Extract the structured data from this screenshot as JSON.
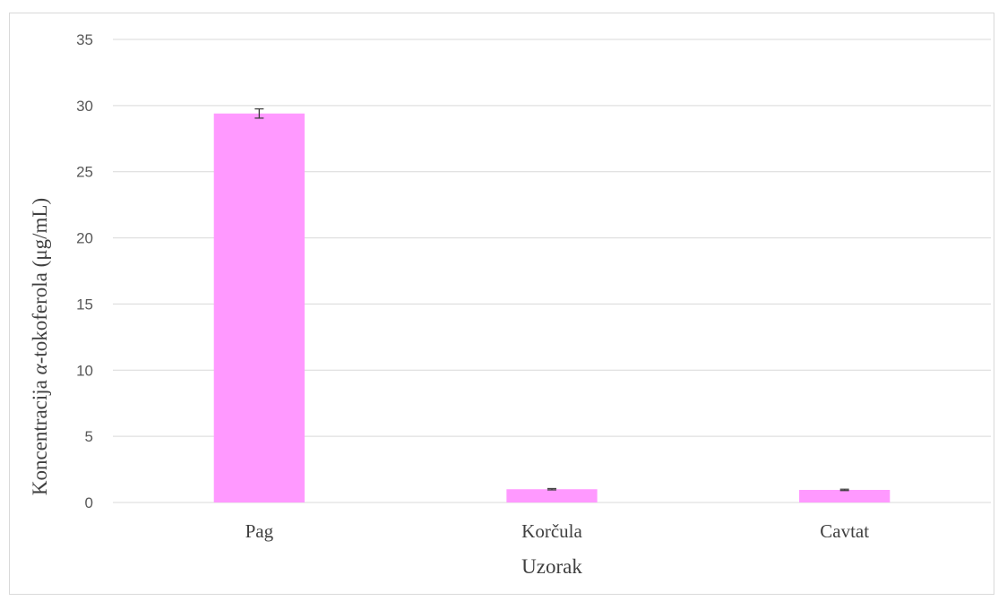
{
  "chart_data": {
    "type": "bar",
    "categories": [
      "Pag",
      "Korčula",
      "Cavtat"
    ],
    "series": [
      {
        "values": [
          29.4,
          1.0,
          0.95
        ],
        "errors": [
          0.35,
          0.05,
          0.05
        ]
      }
    ],
    "xlabel": "Uzorak",
    "ylabel_prefix": "Koncentracija ",
    "ylabel_alpha": "α",
    "ylabel_suffix": "-tokoferola (μg/mL)",
    "ylim": [
      0,
      35
    ],
    "yticks": [
      0,
      5,
      10,
      15,
      20,
      25,
      30,
      35
    ],
    "grid": true,
    "legend": "none",
    "bar_color": "#ff99ff",
    "grid_color": "#d9d9d9",
    "error_color": "#404040"
  }
}
